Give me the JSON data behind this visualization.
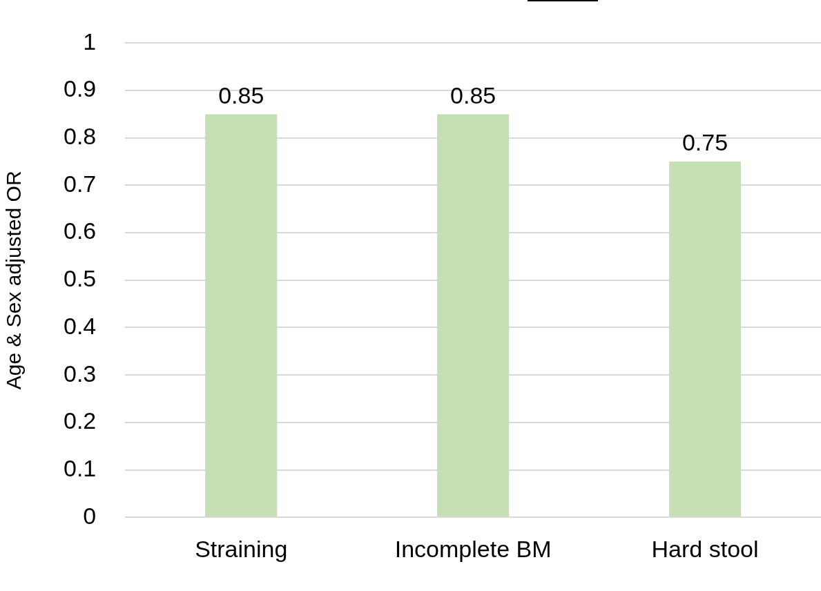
{
  "chart_data": {
    "type": "bar",
    "ylabel": "Age & Sex adjusted OR",
    "categories": [
      "Straining",
      "Incomplete BM",
      "Hard stool"
    ],
    "values": [
      0.85,
      0.85,
      0.75
    ],
    "color": "#c5e0b4",
    "ylim": [
      0,
      1
    ],
    "yticks": [
      0,
      0.1,
      0.2,
      0.3,
      0.4,
      0.5,
      0.6,
      0.7,
      0.8,
      0.9,
      1
    ],
    "grid": "y",
    "data_labels": true,
    "legend": false
  }
}
